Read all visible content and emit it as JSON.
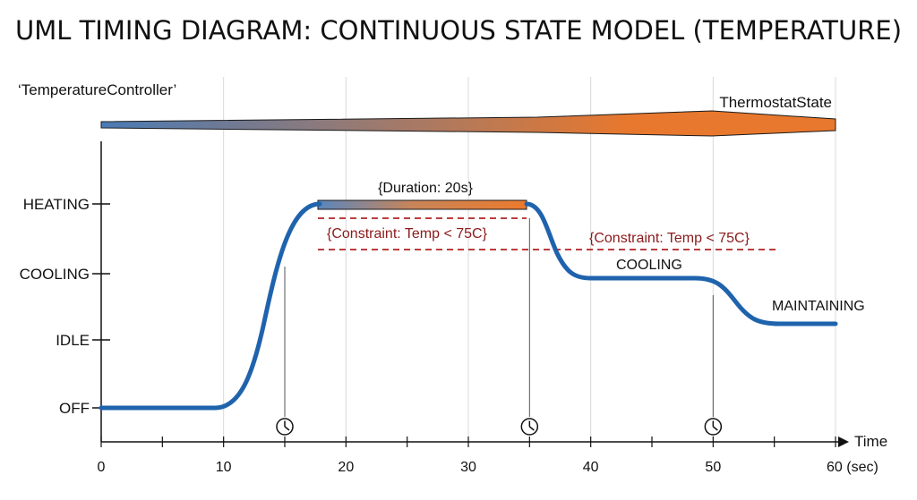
{
  "title": "UML TIMING DIAGRAM: CONTINUOUS STATE MODEL (TEMPERATURE)",
  "lifeline_name": "‘TemperatureController’",
  "band": {
    "label": "ThermostatState",
    "colors": [
      "#4a7bb5",
      "#e8782d"
    ]
  },
  "states": [
    "HEATING",
    "COOLING",
    "IDLE",
    "OFF"
  ],
  "x_axis": {
    "label": "Time",
    "ticks": [
      "0",
      "10",
      "20",
      "30",
      "40",
      "50",
      "60 (sec)"
    ],
    "range": [
      0,
      60
    ]
  },
  "signal": {
    "color": "#1f63ad",
    "segments": [
      {
        "from": 0,
        "to": 10,
        "state": "OFF"
      },
      {
        "from": 10,
        "to": 17.5,
        "state": "HEATING"
      },
      {
        "from": 17.5,
        "to": 35,
        "state": "HEATING"
      },
      {
        "from": 35,
        "to": 40,
        "state": "COOLING"
      },
      {
        "from": 40,
        "to": 50,
        "state": "COOLING"
      },
      {
        "from": 50,
        "to": 60,
        "state": "MAINTAINING"
      }
    ]
  },
  "annotations": {
    "duration": "{Duration: 20s}",
    "constraint_1": "{Constraint: Temp < 75C}",
    "constraint_2": "{Constraint: Temp < 75C}",
    "cooling": "COOLING",
    "maintaining": "MAINTAINING"
  },
  "time_events": [
    15,
    35,
    50
  ],
  "icons": {
    "time_event": "clock-icon",
    "axis_end": "arrow-right-icon"
  },
  "constraint_color": "#b22222"
}
